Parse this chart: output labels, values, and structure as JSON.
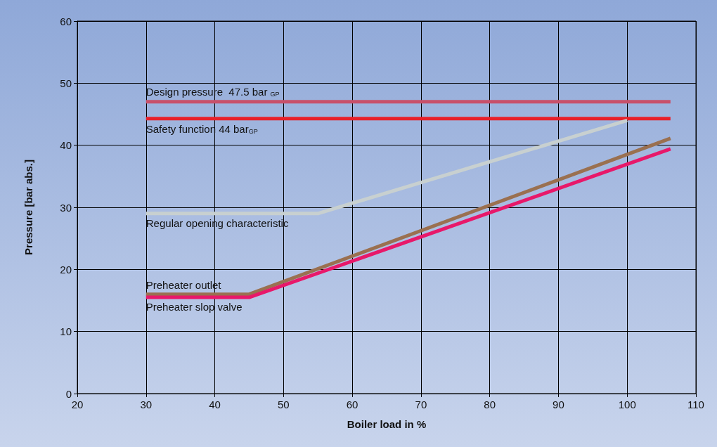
{
  "chart_data": {
    "type": "line",
    "xlabel": "Boiler load in %",
    "ylabel": "Pressure [bar abs.]",
    "xlim": [
      20,
      110
    ],
    "xticks": [
      20,
      30,
      40,
      50,
      60,
      70,
      80,
      90,
      100,
      110
    ],
    "ylim": [
      0,
      60
    ],
    "yticks": [
      0,
      10,
      20,
      30,
      40,
      50,
      60
    ],
    "grid": true,
    "marker": "none",
    "line_style": "solid",
    "legend": false,
    "series": [
      {
        "name": "Design pressure  47.5 bar $_{GP}$",
        "color": "#c8506a",
        "x": [
          30,
          106.3
        ],
        "values": [
          47,
          47
        ]
      },
      {
        "name": "Safety function 44 bar$_{GP}$",
        "color": "#e8202a",
        "x": [
          30,
          106.3
        ],
        "values": [
          44.3,
          44.3
        ]
      },
      {
        "name": "Regular opening characteristic",
        "color": "#c8d0d0",
        "x": [
          30,
          55,
          100
        ],
        "values": [
          29,
          29,
          44
        ]
      },
      {
        "name": "Preheater outlet",
        "color": "#9a7050",
        "x": [
          30,
          45,
          106.3
        ],
        "values": [
          16,
          16,
          41.1
        ]
      },
      {
        "name": "Preheater slop valve",
        "color": "#e8186a",
        "x": [
          30,
          45,
          106.3
        ],
        "values": [
          15.5,
          15.5,
          39.4
        ]
      }
    ]
  }
}
